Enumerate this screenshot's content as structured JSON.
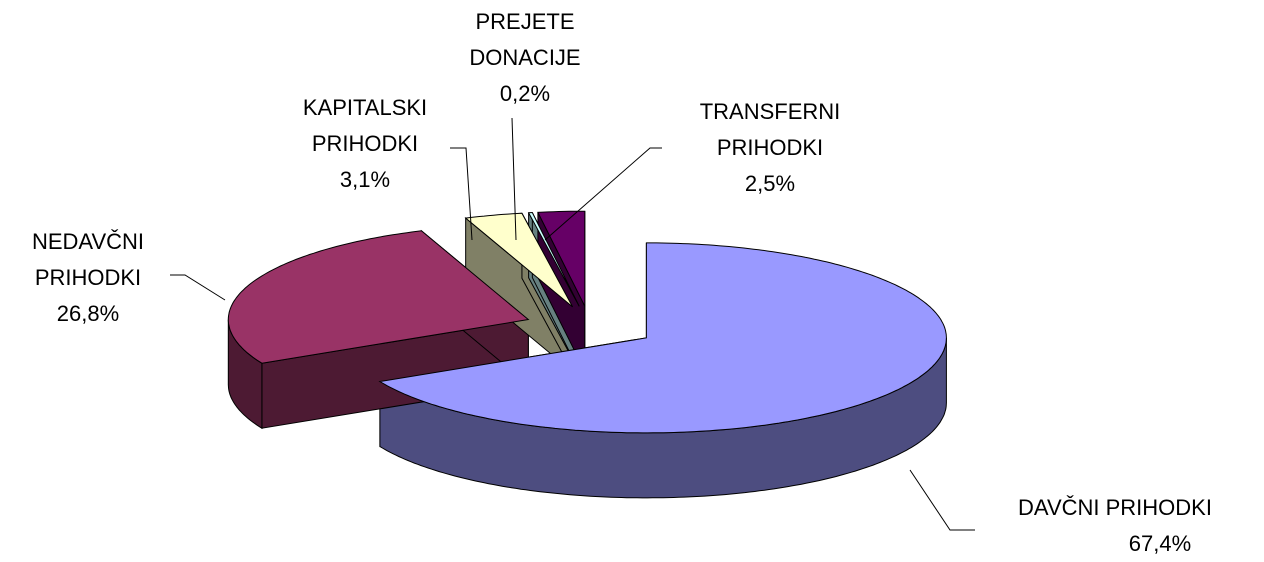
{
  "chart_data": {
    "type": "pie",
    "categories": [
      "DAVČNI  PRIHODKI",
      "NEDAVČNI PRIHODKI",
      "KAPITALSKI PRIHODKI",
      "PREJETE DONACIJE",
      "TRANSFERNI PRIHODKI"
    ],
    "values": [
      67.4,
      26.8,
      3.1,
      0.2,
      2.5
    ],
    "value_labels": [
      "67,4%",
      "26,8%",
      "3,1%",
      "0,2%",
      "2,5%"
    ],
    "colors": [
      "#9999ff",
      "#993366",
      "#ffffcc",
      "#ccffff",
      "#660066"
    ]
  }
}
